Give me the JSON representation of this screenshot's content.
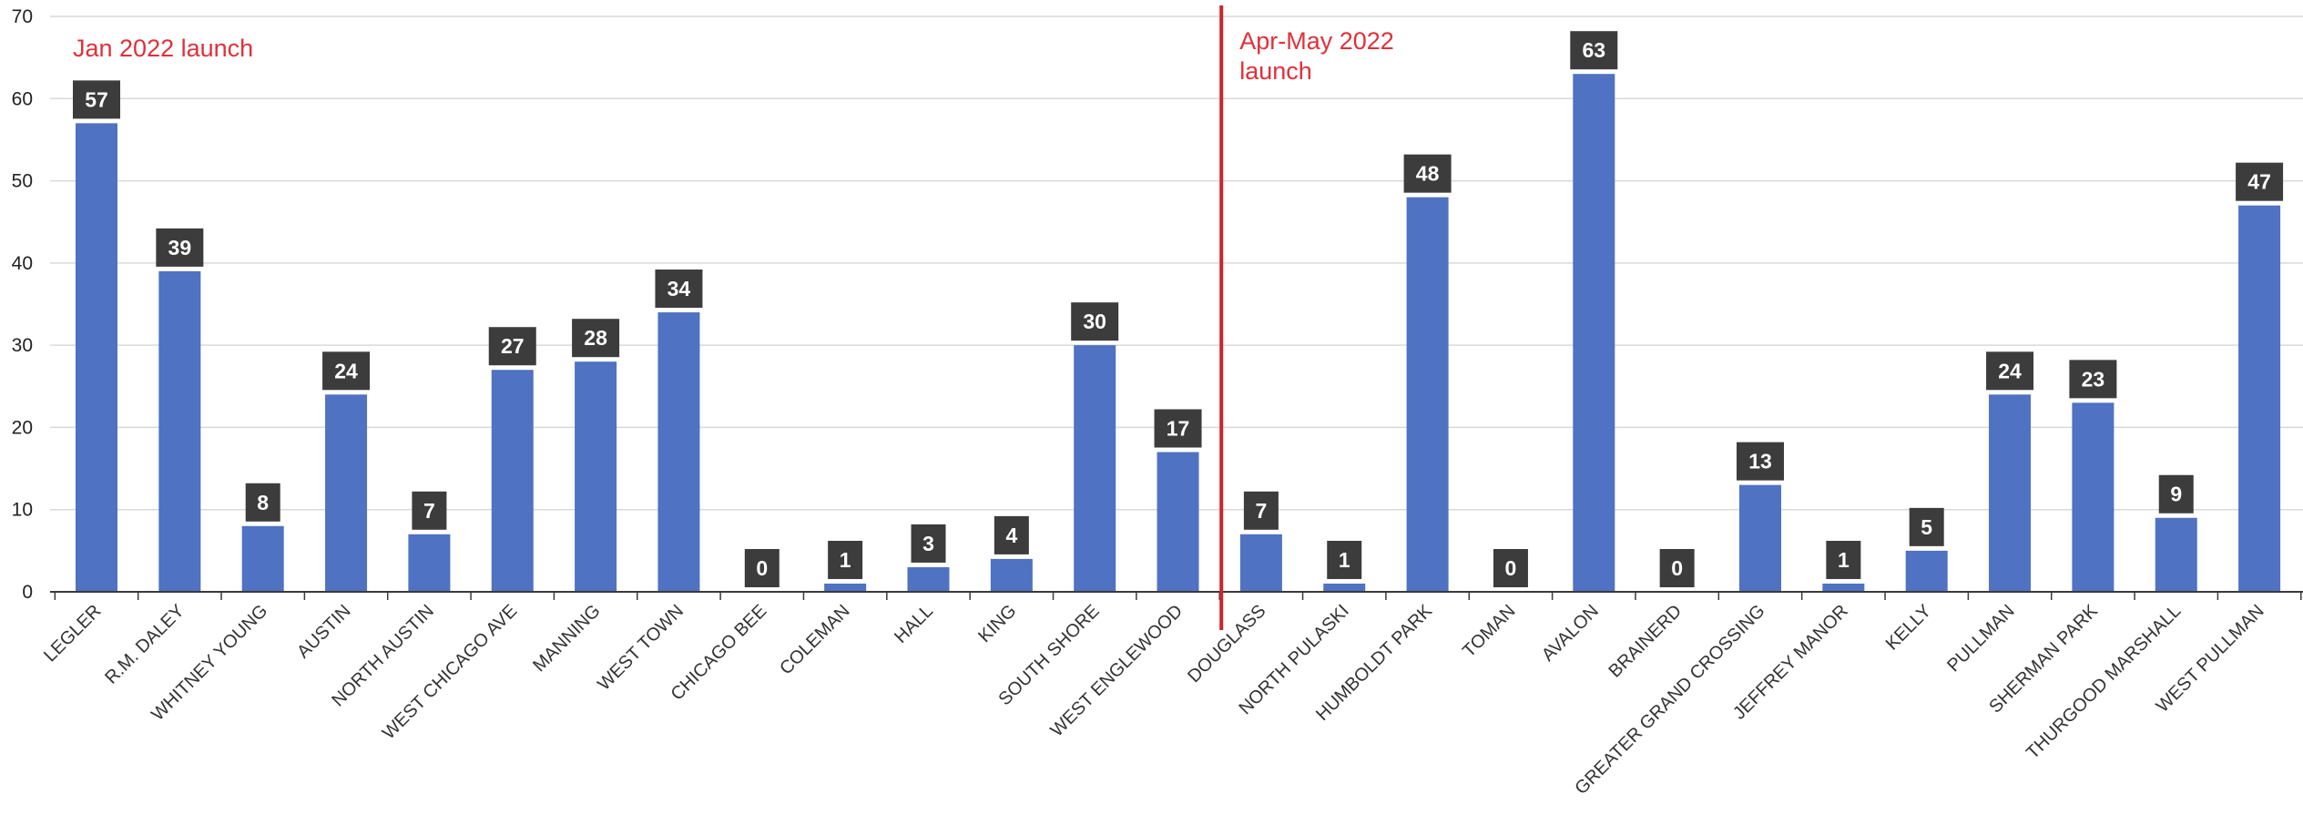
{
  "chart_data": {
    "type": "bar",
    "title": "",
    "xlabel": "",
    "ylabel": "",
    "ylim": [
      0,
      70
    ],
    "yticks": [
      0,
      10,
      20,
      30,
      40,
      50,
      60,
      70
    ],
    "grid": true,
    "legend": "none",
    "categories": [
      "LEGLER",
      "R.M. DALEY",
      "WHITNEY YOUNG",
      "AUSTIN",
      "NORTH AUSTIN",
      "WEST CHICAGO AVE",
      "MANNING",
      "WEST TOWN",
      "CHICAGO BEE",
      "COLEMAN",
      "HALL",
      "KING",
      "SOUTH SHORE",
      "WEST ENGLEWOOD",
      "DOUGLASS",
      "NORTH PULASKI",
      "HUMBOLDT PARK",
      "TOMAN",
      "AVALON",
      "BRAINERD",
      "GREATER GRAND CROSSING",
      "JEFFREY MANOR",
      "KELLY",
      "PULLMAN",
      "SHERMAN PARK",
      "THURGOOD MARSHALL",
      "WEST PULLMAN"
    ],
    "values": [
      57,
      39,
      8,
      24,
      7,
      27,
      28,
      34,
      0,
      1,
      3,
      4,
      30,
      17,
      7,
      1,
      48,
      0,
      63,
      0,
      13,
      1,
      5,
      24,
      23,
      9,
      47
    ],
    "annotations": [
      {
        "lines": [
          "Jan 2022 launch"
        ]
      },
      {
        "lines": [
          "Apr-May 2022",
          "launch"
        ]
      }
    ],
    "divider_after_category": "WEST ENGLEWOOD",
    "colors": {
      "bar": "#4f72c2",
      "label_bg": "#3c3c3c",
      "label_text": "#ffffff",
      "divider": "#d0232b",
      "annotation": "#e0303a",
      "grid": "#d9d9d9",
      "axis": "#3a3a3a"
    }
  }
}
